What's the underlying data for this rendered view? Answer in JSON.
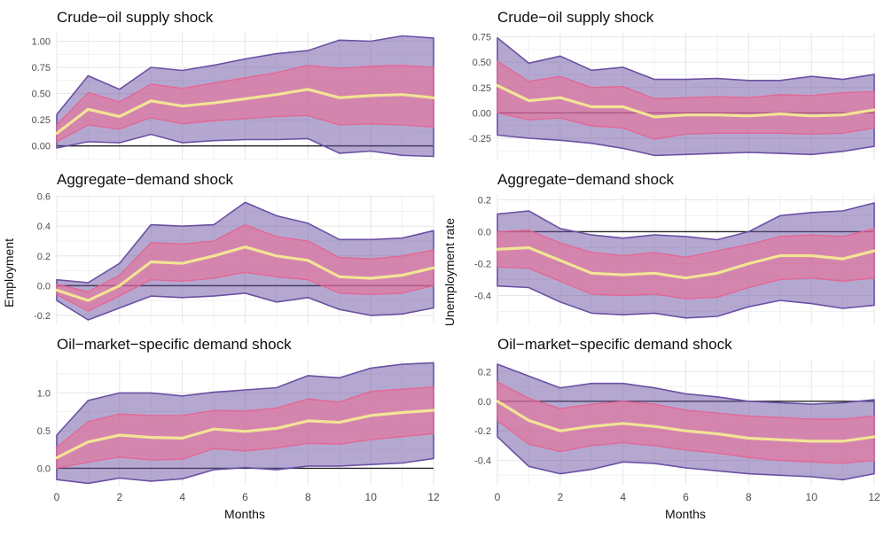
{
  "chart_data": {
    "type": "area",
    "description_of_layout": "2 columns x 3 rows of faceted band charts; each panel: outer purple band, inner pink band, yellow median line, black zero line",
    "x": [
      0,
      1,
      2,
      3,
      4,
      5,
      6,
      7,
      8,
      9,
      10,
      11,
      12
    ],
    "x_ticks": [
      0,
      2,
      4,
      6,
      8,
      10,
      12
    ],
    "xlabel": "Months",
    "col_labels": [
      "Employment",
      "Unemployment rate"
    ],
    "row_labels": [
      "Crude−oil supply shock",
      "Aggregate−demand shock",
      "Oil−market−specific demand shock"
    ],
    "colors": {
      "background": "#ffffff",
      "gridline_major": "#e6e6e6",
      "gridline_minor": "#f1f1f1",
      "outer_band_fill": "#6a51a3",
      "outer_band_fill_opacity": 0.5,
      "outer_band_stroke": "#6a51a3",
      "inner_band_fill": "#e87098",
      "inner_band_fill_opacity": 0.62,
      "inner_band_stroke": "#e8608e",
      "median_line": "#f2e494",
      "zero_line": "#262626",
      "tick_text": "#4d4d4d"
    },
    "panels": [
      {
        "title": "Crude−oil supply shock",
        "ylabel": "Employment",
        "ylim": [
          -0.13,
          1.08
        ],
        "y_ticks": [
          0.0,
          0.25,
          0.5,
          0.75,
          1.0
        ],
        "y_tick_labels": [
          "0.00",
          "0.25",
          "0.50",
          "0.75",
          "1.00"
        ],
        "median": [
          0.12,
          0.35,
          0.28,
          0.43,
          0.38,
          0.41,
          0.45,
          0.49,
          0.54,
          0.46,
          0.48,
          0.49,
          0.46
        ],
        "inner_hi": [
          0.2,
          0.51,
          0.42,
          0.59,
          0.55,
          0.6,
          0.65,
          0.7,
          0.77,
          0.74,
          0.76,
          0.77,
          0.75
        ],
        "inner_lo": [
          0.04,
          0.2,
          0.16,
          0.27,
          0.21,
          0.24,
          0.26,
          0.28,
          0.29,
          0.2,
          0.21,
          0.2,
          0.18
        ],
        "outer_hi": [
          0.3,
          0.67,
          0.54,
          0.75,
          0.72,
          0.77,
          0.83,
          0.88,
          0.91,
          1.01,
          1.0,
          1.05,
          1.03
        ],
        "outer_lo": [
          -0.02,
          0.04,
          0.03,
          0.11,
          0.03,
          0.05,
          0.06,
          0.06,
          0.07,
          -0.07,
          -0.05,
          -0.09,
          -0.1
        ]
      },
      {
        "title": "Aggregate−demand shock",
        "ylabel": "Employment",
        "ylim": [
          -0.26,
          0.61
        ],
        "y_ticks": [
          -0.2,
          0.0,
          0.2,
          0.4,
          0.6
        ],
        "y_tick_labels": [
          "-0.2",
          "0.0",
          "0.2",
          "0.4",
          "0.6"
        ],
        "median": [
          -0.03,
          -0.1,
          0.0,
          0.16,
          0.15,
          0.2,
          0.26,
          0.2,
          0.17,
          0.06,
          0.05,
          0.07,
          0.12
        ],
        "inner_hi": [
          0.01,
          -0.04,
          0.07,
          0.29,
          0.28,
          0.3,
          0.41,
          0.33,
          0.3,
          0.19,
          0.18,
          0.2,
          0.24
        ],
        "inner_lo": [
          -0.06,
          -0.17,
          -0.07,
          0.04,
          0.03,
          0.05,
          0.09,
          0.06,
          0.04,
          -0.05,
          -0.06,
          -0.05,
          0.0
        ],
        "outer_hi": [
          0.04,
          0.02,
          0.15,
          0.41,
          0.4,
          0.41,
          0.56,
          0.47,
          0.42,
          0.31,
          0.31,
          0.32,
          0.37
        ],
        "outer_lo": [
          -0.1,
          -0.23,
          -0.15,
          -0.07,
          -0.08,
          -0.07,
          -0.05,
          -0.11,
          -0.08,
          -0.16,
          -0.2,
          -0.19,
          -0.15
        ]
      },
      {
        "title": "Oil−market−specific demand shock",
        "ylabel": "Employment",
        "ylim": [
          -0.23,
          1.44
        ],
        "y_ticks": [
          0.0,
          0.5,
          1.0
        ],
        "y_tick_labels": [
          "0.0",
          "0.5",
          "1.0"
        ],
        "median": [
          0.14,
          0.35,
          0.44,
          0.41,
          0.4,
          0.52,
          0.49,
          0.53,
          0.63,
          0.61,
          0.7,
          0.74,
          0.77
        ],
        "inner_hi": [
          0.28,
          0.62,
          0.72,
          0.7,
          0.7,
          0.77,
          0.76,
          0.8,
          0.92,
          0.88,
          1.02,
          1.05,
          1.08
        ],
        "inner_lo": [
          0.0,
          0.08,
          0.15,
          0.11,
          0.12,
          0.26,
          0.23,
          0.27,
          0.33,
          0.32,
          0.38,
          0.42,
          0.46
        ],
        "outer_hi": [
          0.44,
          0.9,
          1.0,
          1.0,
          0.96,
          1.01,
          1.04,
          1.07,
          1.23,
          1.2,
          1.33,
          1.38,
          1.4
        ],
        "outer_lo": [
          -0.15,
          -0.2,
          -0.13,
          -0.17,
          -0.14,
          -0.02,
          0.01,
          -0.02,
          0.03,
          0.03,
          0.05,
          0.07,
          0.13
        ]
      },
      {
        "title": "Crude−oil supply shock",
        "ylabel": "Unemployment rate",
        "ylim": [
          -0.46,
          0.79
        ],
        "y_ticks": [
          -0.25,
          0.0,
          0.25,
          0.5,
          0.75
        ],
        "y_tick_labels": [
          "-0.25",
          "0.00",
          "0.25",
          "0.50",
          "0.75"
        ],
        "median": [
          0.27,
          0.12,
          0.15,
          0.06,
          0.06,
          -0.04,
          -0.02,
          -0.02,
          -0.03,
          -0.01,
          -0.03,
          -0.02,
          0.03
        ],
        "inner_hi": [
          0.51,
          0.31,
          0.36,
          0.25,
          0.26,
          0.14,
          0.15,
          0.16,
          0.15,
          0.18,
          0.17,
          0.2,
          0.21
        ],
        "inner_lo": [
          0.0,
          -0.07,
          -0.05,
          -0.13,
          -0.15,
          -0.26,
          -0.21,
          -0.2,
          -0.2,
          -0.2,
          -0.21,
          -0.2,
          -0.15
        ],
        "outer_hi": [
          0.74,
          0.49,
          0.56,
          0.42,
          0.45,
          0.33,
          0.33,
          0.34,
          0.32,
          0.32,
          0.36,
          0.33,
          0.38
        ],
        "outer_lo": [
          -0.22,
          -0.25,
          -0.27,
          -0.3,
          -0.35,
          -0.42,
          -0.41,
          -0.4,
          -0.39,
          -0.4,
          -0.41,
          -0.38,
          -0.33
        ]
      },
      {
        "title": "Aggregate−demand shock",
        "ylabel": "Unemployment rate",
        "ylim": [
          -0.58,
          0.23
        ],
        "y_ticks": [
          -0.4,
          -0.2,
          0.0,
          0.2
        ],
        "y_tick_labels": [
          "-0.4",
          "-0.2",
          "0.0",
          "0.2"
        ],
        "median": [
          -0.11,
          -0.1,
          -0.18,
          -0.26,
          -0.27,
          -0.26,
          -0.29,
          -0.26,
          -0.2,
          -0.15,
          -0.15,
          -0.17,
          -0.12
        ],
        "inner_hi": [
          0.0,
          0.01,
          -0.07,
          -0.13,
          -0.15,
          -0.13,
          -0.16,
          -0.12,
          -0.08,
          -0.03,
          -0.02,
          -0.03,
          0.02
        ],
        "inner_lo": [
          -0.22,
          -0.23,
          -0.31,
          -0.39,
          -0.4,
          -0.39,
          -0.42,
          -0.41,
          -0.35,
          -0.3,
          -0.29,
          -0.31,
          -0.29
        ],
        "outer_hi": [
          0.11,
          0.13,
          0.02,
          -0.02,
          -0.04,
          -0.02,
          -0.03,
          -0.05,
          0.0,
          0.1,
          0.12,
          0.13,
          0.18
        ],
        "outer_lo": [
          -0.34,
          -0.35,
          -0.44,
          -0.51,
          -0.52,
          -0.51,
          -0.54,
          -0.53,
          -0.47,
          -0.43,
          -0.45,
          -0.48,
          -0.46
        ]
      },
      {
        "title": "Oil−market−specific demand shock",
        "ylabel": "Unemployment rate",
        "ylim": [
          -0.57,
          0.28
        ],
        "y_ticks": [
          -0.4,
          -0.2,
          0.0,
          0.2
        ],
        "y_tick_labels": [
          "-0.4",
          "-0.2",
          "0.0",
          "0.2"
        ],
        "median": [
          0.0,
          -0.13,
          -0.2,
          -0.17,
          -0.15,
          -0.17,
          -0.2,
          -0.22,
          -0.25,
          -0.26,
          -0.27,
          -0.27,
          -0.24
        ],
        "inner_hi": [
          0.13,
          0.02,
          -0.05,
          -0.02,
          0.0,
          -0.02,
          -0.06,
          -0.08,
          -0.1,
          -0.11,
          -0.12,
          -0.12,
          -0.1
        ],
        "inner_lo": [
          -0.13,
          -0.29,
          -0.34,
          -0.3,
          -0.28,
          -0.3,
          -0.33,
          -0.35,
          -0.38,
          -0.4,
          -0.41,
          -0.42,
          -0.4
        ],
        "outer_hi": [
          0.25,
          0.17,
          0.09,
          0.12,
          0.12,
          0.09,
          0.05,
          0.03,
          0.0,
          -0.01,
          -0.02,
          -0.01,
          0.01
        ],
        "outer_lo": [
          -0.24,
          -0.44,
          -0.49,
          -0.46,
          -0.41,
          -0.42,
          -0.45,
          -0.47,
          -0.49,
          -0.5,
          -0.51,
          -0.53,
          -0.49
        ]
      }
    ]
  }
}
